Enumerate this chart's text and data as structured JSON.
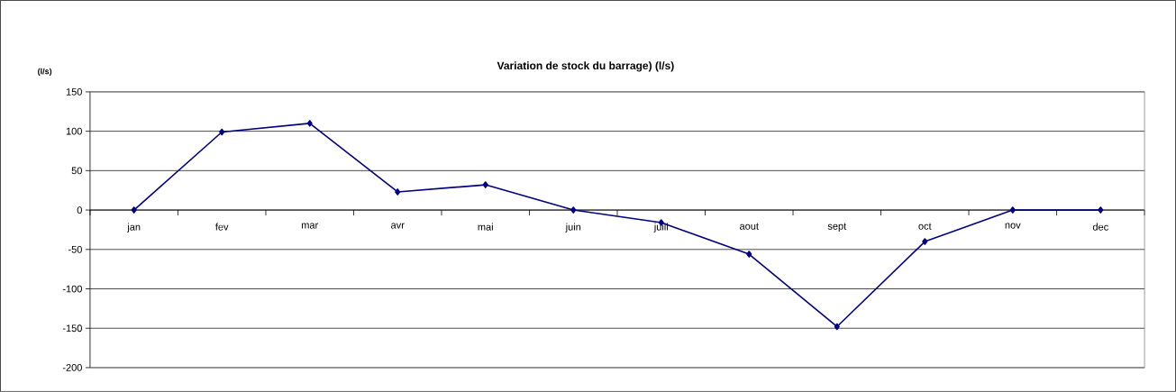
{
  "chart_data": {
    "type": "line",
    "title": "Variation de stock du barrage) (l/s)",
    "ylabel": "(l/s)",
    "categories": [
      "jan",
      "fev",
      "mar",
      "avr",
      "mai",
      "juin",
      "juill",
      "aout",
      "sept",
      "oct",
      "nov",
      "dec"
    ],
    "values": [
      0,
      99,
      110,
      23,
      32,
      0,
      -16,
      -56,
      -148,
      -40,
      0,
      0
    ],
    "color": "#000080",
    "marker": "diamond",
    "line_style": "solid",
    "ylim": [
      -200,
      150
    ],
    "yticks": [
      -200,
      -150,
      -100,
      -50,
      0,
      50,
      100,
      150
    ],
    "grid": "y"
  }
}
